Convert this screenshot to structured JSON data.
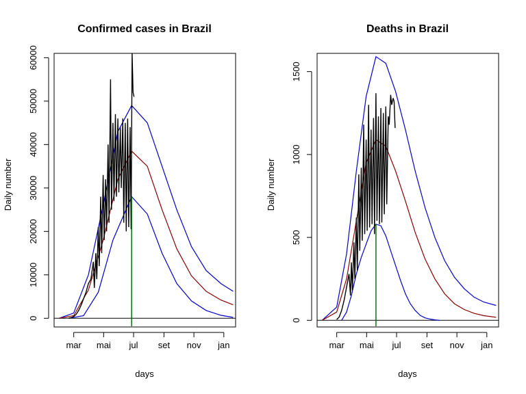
{
  "colors": {
    "observed": "#000000",
    "fit": "#8b0000",
    "band": "#0000cd",
    "peak_line": "#006400"
  },
  "chart_data": [
    {
      "type": "line",
      "title": "Confirmed cases in Brazil",
      "xlabel": "days",
      "ylabel": "Daily number",
      "x_unit": "day-of-year",
      "xlim": [
        20,
        390
      ],
      "ylim": [
        -2000,
        61000
      ],
      "x_ticks": [
        {
          "label": "mar",
          "x": 60
        },
        {
          "label": "mai",
          "x": 121
        },
        {
          "label": "jul",
          "x": 182
        },
        {
          "label": "set",
          "x": 244
        },
        {
          "label": "nov",
          "x": 305
        },
        {
          "label": "jan",
          "x": 366
        }
      ],
      "y_ticks": [
        0,
        10000,
        20000,
        30000,
        40000,
        50000,
        60000
      ],
      "hline": 0,
      "peak_day": 178,
      "series": [
        {
          "role": "upper",
          "x": [
            30,
            60,
            90,
            120,
            150,
            178,
            210,
            240,
            270,
            300,
            330,
            360,
            385
          ],
          "y": [
            0,
            1200,
            10000,
            26000,
            43000,
            49000,
            45000,
            35000,
            25000,
            16500,
            11000,
            8000,
            6200
          ]
        },
        {
          "role": "fit",
          "x": [
            30,
            60,
            90,
            120,
            150,
            178,
            210,
            240,
            270,
            300,
            330,
            360,
            385
          ],
          "y": [
            0,
            600,
            6500,
            18000,
            32000,
            38500,
            35000,
            25000,
            16000,
            9800,
            6200,
            4200,
            3100
          ]
        },
        {
          "role": "lower",
          "x": [
            50,
            80,
            110,
            140,
            178,
            210,
            240,
            270,
            300,
            330,
            360,
            385
          ],
          "y": [
            0,
            600,
            6000,
            18000,
            28000,
            24000,
            15000,
            8000,
            4000,
            1800,
            700,
            200
          ]
        }
      ],
      "observed": {
        "x": [
          50,
          55,
          60,
          65,
          70,
          75,
          80,
          85,
          90,
          95,
          100,
          102,
          105,
          107,
          110,
          112,
          115,
          117,
          120,
          122,
          125,
          127,
          130,
          132,
          135,
          137,
          140,
          142,
          145,
          147,
          150,
          152,
          155,
          157,
          160,
          162,
          165,
          167,
          170,
          172,
          175,
          177,
          179,
          181,
          183
        ],
        "y": [
          50,
          150,
          400,
          900,
          1800,
          3000,
          4500,
          6000,
          8000,
          9000,
          13000,
          7000,
          15000,
          9000,
          21000,
          12000,
          28000,
          15000,
          33000,
          18000,
          32000,
          20000,
          40000,
          22000,
          55000,
          25000,
          45000,
          27000,
          47000,
          28000,
          46000,
          29000,
          44000,
          30000,
          46000,
          22000,
          45000,
          20000,
          46000,
          21000,
          44000,
          20500,
          61000,
          52000,
          51000
        ]
      }
    },
    {
      "type": "line",
      "title": "Deaths in Brazil",
      "xlabel": "days",
      "ylabel": "Daily number",
      "x_unit": "day-of-year",
      "xlim": [
        20,
        390
      ],
      "ylim": [
        -40,
        1610
      ],
      "x_ticks": [
        {
          "label": "mar",
          "x": 60
        },
        {
          "label": "mai",
          "x": 121
        },
        {
          "label": "jul",
          "x": 182
        },
        {
          "label": "set",
          "x": 244
        },
        {
          "label": "nov",
          "x": 305
        },
        {
          "label": "jan",
          "x": 366
        }
      ],
      "y_ticks": [
        0,
        500,
        1000,
        1500
      ],
      "hline": 0,
      "peak_day": 140,
      "series": [
        {
          "role": "upper",
          "x": [
            30,
            60,
            80,
            100,
            120,
            140,
            160,
            180,
            200,
            220,
            240,
            260,
            280,
            300,
            320,
            340,
            360,
            385
          ],
          "y": [
            0,
            80,
            400,
            900,
            1350,
            1590,
            1550,
            1380,
            1150,
            900,
            680,
            500,
            360,
            260,
            190,
            140,
            110,
            90
          ]
        },
        {
          "role": "fit",
          "x": [
            30,
            60,
            80,
            100,
            120,
            140,
            160,
            180,
            200,
            220,
            240,
            260,
            280,
            300,
            320,
            340,
            360,
            385
          ],
          "y": [
            0,
            50,
            250,
            600,
            950,
            1090,
            1050,
            900,
            720,
            530,
            370,
            250,
            160,
            100,
            65,
            42,
            28,
            18
          ]
        },
        {
          "role": "lower",
          "x": [
            70,
            80,
            90,
            100,
            110,
            120,
            130,
            140,
            150,
            160,
            170,
            180,
            190,
            200,
            210,
            220,
            230,
            240,
            250,
            260,
            270
          ],
          "y": [
            0,
            50,
            150,
            280,
            380,
            460,
            540,
            580,
            570,
            510,
            420,
            330,
            240,
            160,
            100,
            60,
            30,
            15,
            8,
            3,
            0
          ]
        }
      ],
      "observed": {
        "x": [
          60,
          65,
          70,
          75,
          80,
          85,
          88,
          90,
          92,
          95,
          97,
          100,
          102,
          105,
          107,
          110,
          112,
          115,
          117,
          120,
          122,
          125,
          127,
          130,
          132,
          135,
          137,
          140,
          142,
          145,
          147,
          150,
          152,
          155,
          157,
          160,
          162,
          165,
          167,
          170,
          172,
          175,
          177,
          179
        ],
        "y": [
          5,
          20,
          60,
          120,
          200,
          280,
          150,
          350,
          180,
          470,
          250,
          620,
          300,
          880,
          420,
          920,
          480,
          1180,
          520,
          1090,
          540,
          1300,
          560,
          1150,
          580,
          1220,
          520,
          1370,
          600,
          1230,
          580,
          1280,
          590,
          1250,
          640,
          1290,
          700,
          1230,
          1180,
          1360,
          1300,
          1340,
          1320,
          1160
        ]
      }
    }
  ]
}
